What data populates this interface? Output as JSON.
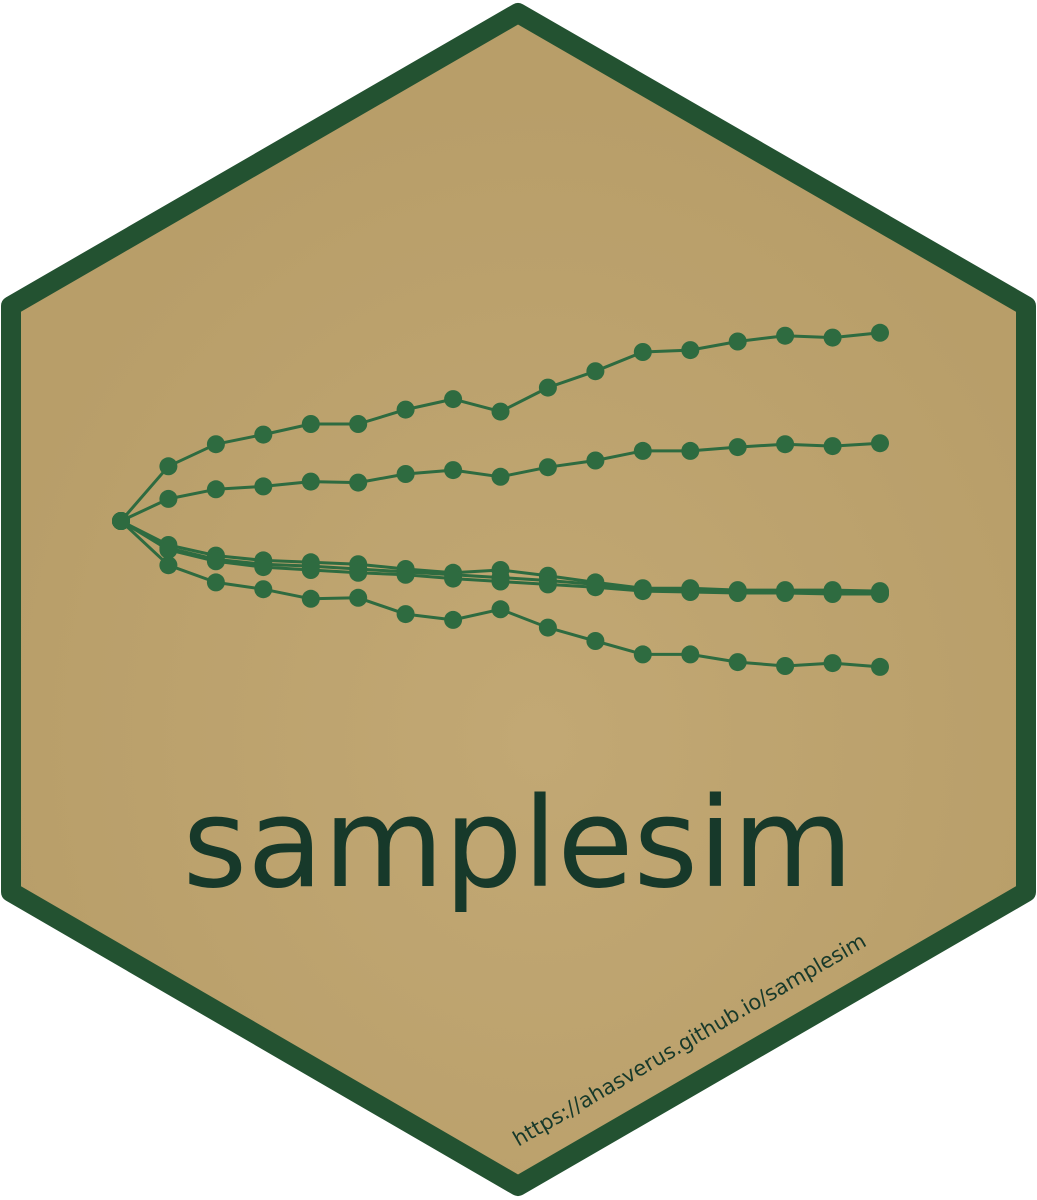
{
  "sticker": {
    "title": "samplesim",
    "url": "https://ahasverus.github.io/samplesim"
  },
  "colors": {
    "fill": "#b89e69",
    "fill_center": "#c2a874",
    "border": "#235231",
    "paths": "#2e6b40",
    "text": "#17392a"
  },
  "chart_data": {
    "type": "line",
    "x": [
      0,
      1,
      2,
      3,
      4,
      5,
      6,
      7,
      8,
      9,
      10,
      11,
      12,
      13,
      14,
      15,
      16
    ],
    "series": [
      {
        "values": [
          0,
          0.57,
          0.8,
          0.9,
          1.01,
          1.01,
          1.16,
          1.27,
          1.14,
          1.39,
          1.56,
          1.76,
          1.78,
          1.87,
          1.93,
          1.91,
          1.96
        ]
      },
      {
        "values": [
          0,
          0.23,
          0.33,
          0.36,
          0.41,
          0.4,
          0.49,
          0.53,
          0.46,
          0.56,
          0.63,
          0.73,
          0.73,
          0.77,
          0.8,
          0.78,
          0.81
        ]
      },
      {
        "values": [
          0,
          -0.25,
          -0.36,
          -0.41,
          -0.43,
          -0.45,
          -0.5,
          -0.54,
          -0.51,
          -0.57,
          -0.64,
          -0.7,
          -0.7,
          -0.72,
          -0.72,
          -0.72,
          -0.73
        ]
      },
      {
        "values": [
          0,
          -0.28,
          -0.4,
          -0.45,
          -0.47,
          -0.5,
          -0.53,
          -0.56,
          -0.59,
          -0.62,
          -0.66,
          -0.72,
          -0.72,
          -0.73,
          -0.74,
          -0.75,
          -0.75
        ]
      },
      {
        "values": [
          0,
          -0.3,
          -0.42,
          -0.48,
          -0.51,
          -0.54,
          -0.56,
          -0.6,
          -0.63,
          -0.66,
          -0.69,
          -0.73,
          -0.74,
          -0.75,
          -0.75,
          -0.76,
          -0.76
        ]
      },
      {
        "values": [
          0,
          -0.46,
          -0.64,
          -0.71,
          -0.81,
          -0.8,
          -0.97,
          -1.03,
          -0.92,
          -1.11,
          -1.25,
          -1.39,
          -1.39,
          -1.47,
          -1.51,
          -1.48,
          -1.52
        ]
      }
    ]
  }
}
